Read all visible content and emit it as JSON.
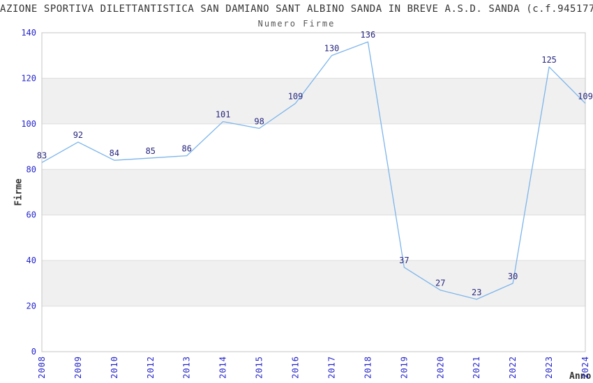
{
  "header": {
    "title": "AZIONE SPORTIVA DILETTANTISTICA SAN DAMIANO SANT ALBINO SANDA IN BREVE A.S.D. SANDA (c.f.945177",
    "subtitle": "Numero Firme"
  },
  "chart_data": {
    "type": "line",
    "title": "Numero Firme",
    "categories": [
      "2008",
      "2009",
      "2010",
      "2012",
      "2013",
      "2014",
      "2015",
      "2016",
      "2017",
      "2018",
      "2019",
      "2020",
      "2021",
      "2022",
      "2023",
      "2024"
    ],
    "values": [
      83,
      92,
      84,
      85,
      86,
      101,
      98,
      109,
      130,
      136,
      37,
      27,
      23,
      30,
      125,
      109
    ],
    "xlabel": "Anno",
    "ylabel": "Firme",
    "ylim": [
      0,
      140
    ],
    "ytick_step": 20,
    "yticks": [
      0,
      20,
      40,
      60,
      80,
      100,
      120,
      140
    ],
    "grid": true,
    "legend": "none",
    "data_labels": true,
    "colors": {
      "line": "#7cb5ec",
      "data_label": "#26267e",
      "tick_label": "#2424cc",
      "band": "#f0f0f0",
      "band_alt": "#ffffff",
      "gridline": "#dddddd",
      "plot_border": "#c6c6c6",
      "title_text": "#333333",
      "subtitle_text": "#555555",
      "axis_label_text": "#333333"
    }
  }
}
